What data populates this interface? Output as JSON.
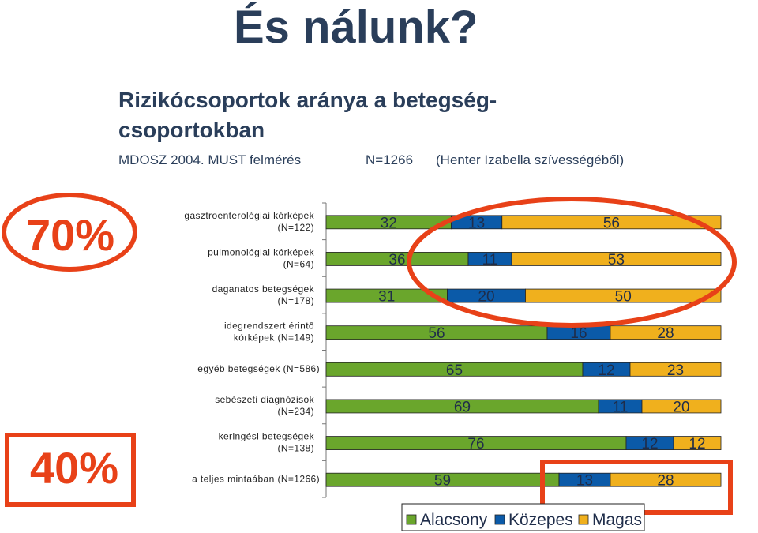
{
  "slide": {
    "title": "És nálunk?",
    "subtitle": "Rizikócsoportok aránya a betegség-csoportokban",
    "meta_left": "MDOSZ 2004. MUST felmérés",
    "meta_mid": "N=1266",
    "meta_right": "(Henter Izabella szívességéből)",
    "callout_high": "70%",
    "callout_low": "40%"
  },
  "colors": {
    "alacsony": "#6aa62c",
    "kozepes": "#0b5aa8",
    "magas": "#f0b01d",
    "highlight": "#e84118",
    "text": "#2a3e5a"
  },
  "chart_data": {
    "type": "bar",
    "orientation": "horizontal",
    "stacked": "100%",
    "categories": [
      [
        "gasztroenterológiai kórképek",
        "(N=122)"
      ],
      [
        "pulmonológiai kórképek",
        "(N=64)"
      ],
      [
        "daganatos betegségek",
        "(N=178)"
      ],
      [
        "idegrendszert érintő",
        "kórképek (N=149)"
      ],
      [
        "egyéb betegségek (N=586)"
      ],
      [
        "sebészeti diagnózisok",
        "(N=234)"
      ],
      [
        "keringési betegségek",
        "(N=138)"
      ],
      [
        "a teljes mintaában (N=1266)"
      ]
    ],
    "series": [
      {
        "name": "Alacsony",
        "values": [
          32,
          36,
          31,
          56,
          65,
          69,
          76,
          59
        ]
      },
      {
        "name": "Közepes",
        "values": [
          13,
          11,
          20,
          16,
          12,
          11,
          12,
          13
        ]
      },
      {
        "name": "Magas",
        "values": [
          56,
          53,
          50,
          28,
          23,
          20,
          12,
          28
        ]
      }
    ],
    "xlim": [
      0,
      100
    ],
    "legend_position": "bottom"
  }
}
